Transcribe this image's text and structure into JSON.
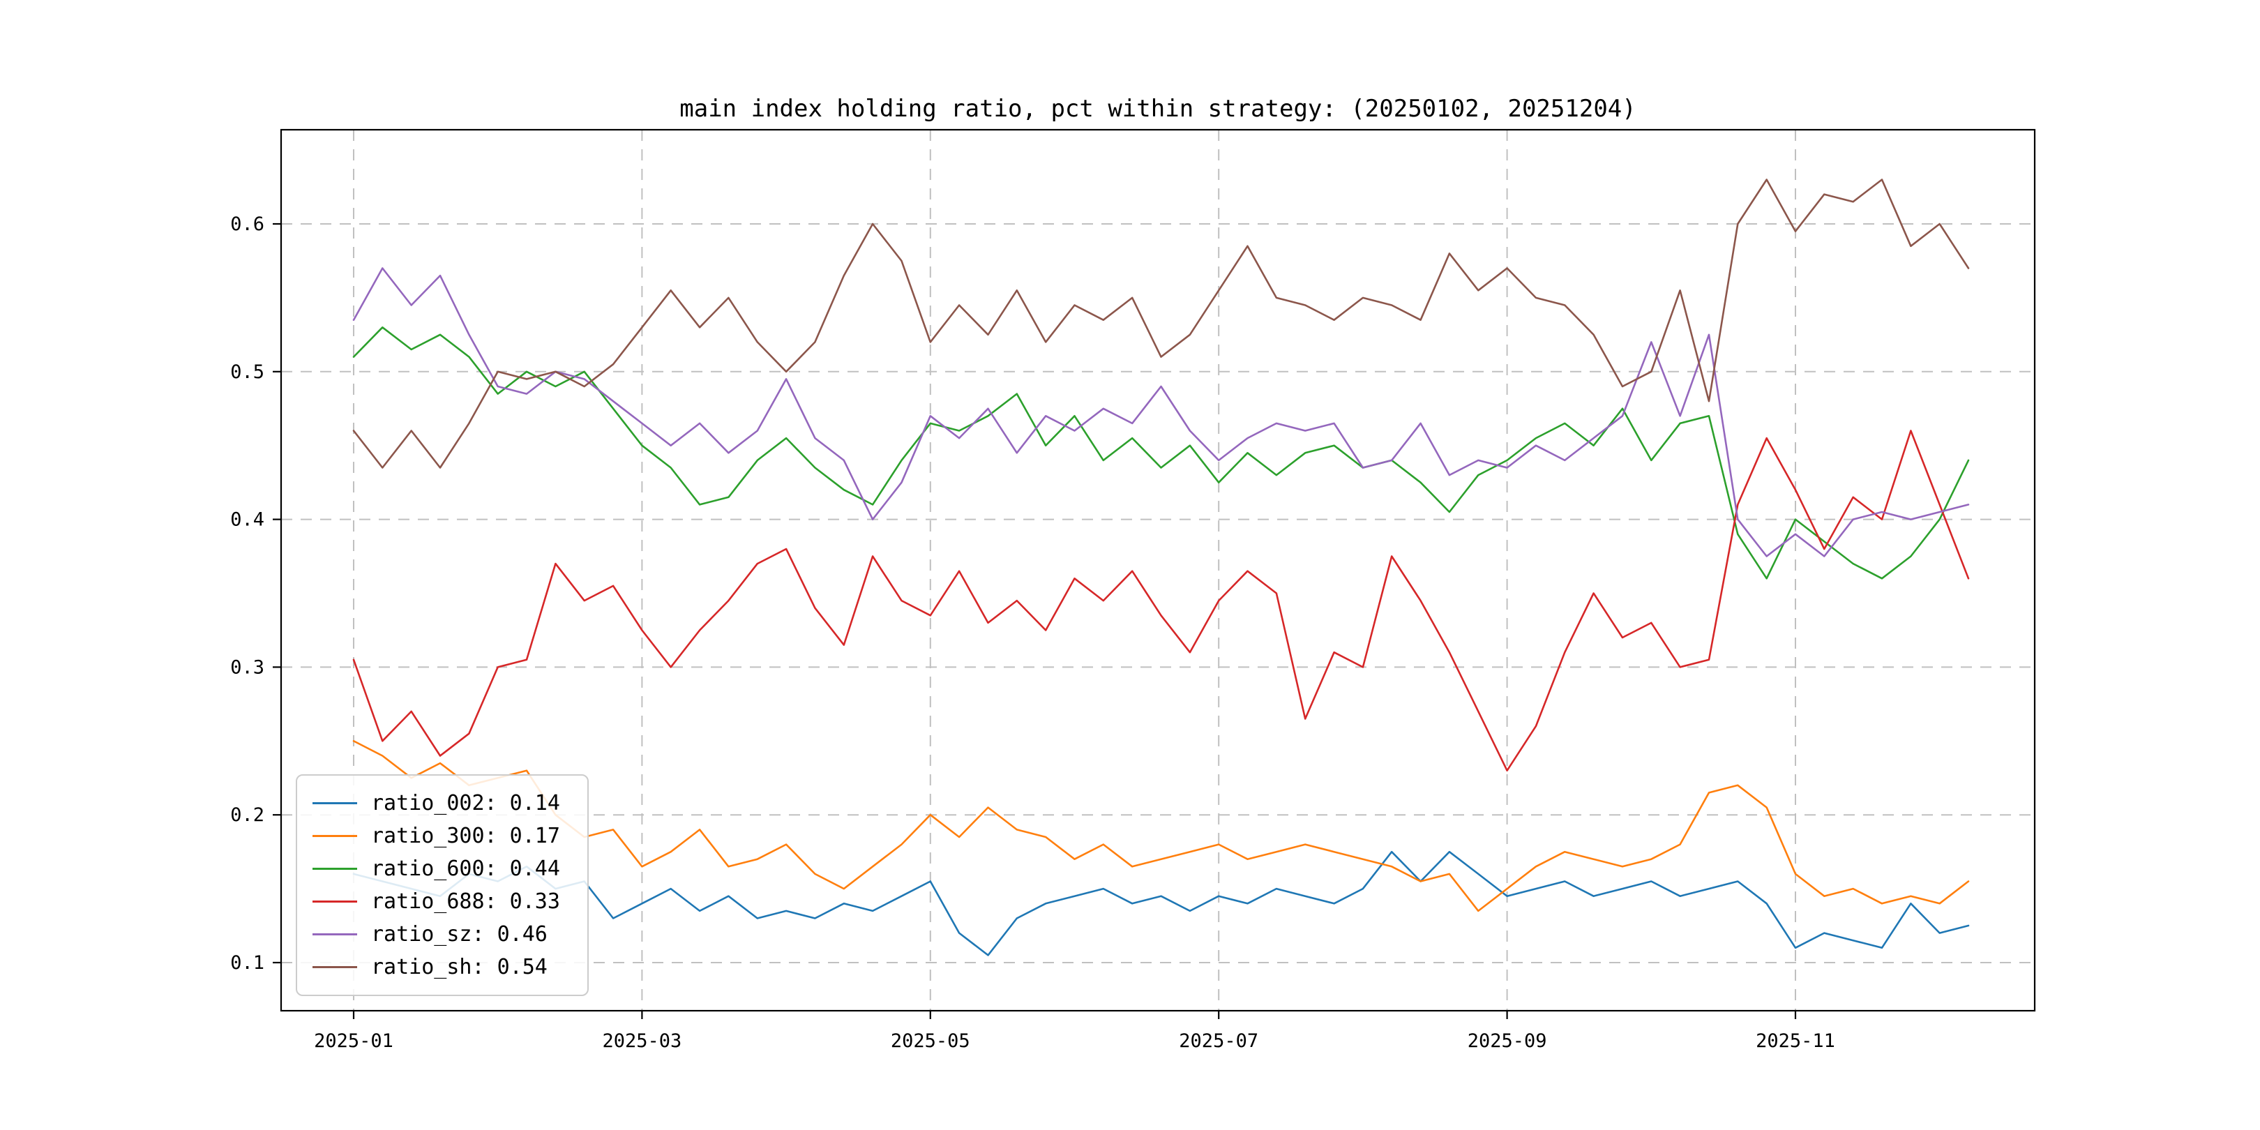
{
  "chart_data": {
    "type": "line",
    "title": "main index holding ratio, pct within strategy: (20250102, 20251204)",
    "date_range": [
      "20250102",
      "20251204"
    ],
    "grid": true,
    "grid_style": "dashed",
    "legend_position": "lower left",
    "xlim_months": [
      -0.5,
      11.66
    ],
    "ylim": [
      0.067,
      0.664
    ],
    "x_ticks": [
      {
        "pos": 0,
        "label": "2025-01"
      },
      {
        "pos": 2,
        "label": "2025-03"
      },
      {
        "pos": 4,
        "label": "2025-05"
      },
      {
        "pos": 6,
        "label": "2025-07"
      },
      {
        "pos": 8,
        "label": "2025-09"
      },
      {
        "pos": 10,
        "label": "2025-11"
      }
    ],
    "y_ticks": [
      0.1,
      0.2,
      0.3,
      0.4,
      0.5,
      0.6
    ],
    "y_tick_labels": [
      "0.1",
      "0.2",
      "0.3",
      "0.4",
      "0.5",
      "0.6"
    ],
    "x": [
      0,
      0.2,
      0.4,
      0.6,
      0.8,
      1,
      1.2,
      1.4,
      1.6,
      1.8,
      2,
      2.2,
      2.4,
      2.6,
      2.8,
      3,
      3.2,
      3.4,
      3.6,
      3.8,
      4,
      4.2,
      4.4,
      4.6,
      4.8,
      5,
      5.2,
      5.4,
      5.6,
      5.8,
      6,
      6.2,
      6.4,
      6.6,
      6.8,
      7,
      7.2,
      7.4,
      7.6,
      7.8,
      8,
      8.2,
      8.4,
      8.6,
      8.8,
      9,
      9.2,
      9.4,
      9.6,
      9.8,
      10,
      10.2,
      10.4,
      10.6,
      10.8,
      11,
      11.2
    ],
    "series": [
      {
        "name": "ratio_002",
        "legend_label": "ratio_002: 0.14",
        "mean": 0.14,
        "color": "#1f77b4",
        "values": [
          0.16,
          0.155,
          0.15,
          0.145,
          0.16,
          0.155,
          0.165,
          0.15,
          0.155,
          0.13,
          0.14,
          0.15,
          0.135,
          0.145,
          0.13,
          0.135,
          0.13,
          0.14,
          0.135,
          0.145,
          0.155,
          0.12,
          0.105,
          0.13,
          0.14,
          0.145,
          0.15,
          0.14,
          0.145,
          0.135,
          0.145,
          0.14,
          0.15,
          0.145,
          0.14,
          0.15,
          0.175,
          0.155,
          0.175,
          0.16,
          0.145,
          0.15,
          0.155,
          0.145,
          0.15,
          0.155,
          0.145,
          0.15,
          0.155,
          0.14,
          0.11,
          0.12,
          0.115,
          0.11,
          0.14,
          0.12,
          0.125
        ]
      },
      {
        "name": "ratio_300",
        "legend_label": "ratio_300: 0.17",
        "mean": 0.17,
        "color": "#ff7f0e",
        "values": [
          0.25,
          0.24,
          0.225,
          0.235,
          0.22,
          0.225,
          0.23,
          0.2,
          0.185,
          0.19,
          0.165,
          0.175,
          0.19,
          0.165,
          0.17,
          0.18,
          0.16,
          0.15,
          0.165,
          0.18,
          0.2,
          0.185,
          0.205,
          0.19,
          0.185,
          0.17,
          0.18,
          0.165,
          0.17,
          0.175,
          0.18,
          0.17,
          0.175,
          0.18,
          0.175,
          0.17,
          0.165,
          0.155,
          0.16,
          0.135,
          0.15,
          0.165,
          0.175,
          0.17,
          0.165,
          0.17,
          0.18,
          0.215,
          0.22,
          0.205,
          0.16,
          0.145,
          0.15,
          0.14,
          0.145,
          0.14,
          0.155
        ]
      },
      {
        "name": "ratio_600",
        "legend_label": "ratio_600: 0.44",
        "mean": 0.44,
        "color": "#2ca02c",
        "values": [
          0.51,
          0.53,
          0.515,
          0.525,
          0.51,
          0.485,
          0.5,
          0.49,
          0.5,
          0.475,
          0.45,
          0.435,
          0.41,
          0.415,
          0.44,
          0.455,
          0.435,
          0.42,
          0.41,
          0.44,
          0.465,
          0.46,
          0.47,
          0.485,
          0.45,
          0.47,
          0.44,
          0.455,
          0.435,
          0.45,
          0.425,
          0.445,
          0.43,
          0.445,
          0.45,
          0.435,
          0.44,
          0.425,
          0.405,
          0.43,
          0.44,
          0.455,
          0.465,
          0.45,
          0.475,
          0.44,
          0.465,
          0.47,
          0.39,
          0.36,
          0.4,
          0.385,
          0.37,
          0.36,
          0.375,
          0.4,
          0.44
        ]
      },
      {
        "name": "ratio_688",
        "legend_label": "ratio_688: 0.33",
        "mean": 0.33,
        "color": "#d62728",
        "values": [
          0.305,
          0.25,
          0.27,
          0.24,
          0.255,
          0.3,
          0.305,
          0.37,
          0.345,
          0.355,
          0.325,
          0.3,
          0.325,
          0.345,
          0.37,
          0.38,
          0.34,
          0.315,
          0.375,
          0.345,
          0.335,
          0.365,
          0.33,
          0.345,
          0.325,
          0.36,
          0.345,
          0.365,
          0.335,
          0.31,
          0.345,
          0.365,
          0.35,
          0.265,
          0.31,
          0.3,
          0.375,
          0.345,
          0.31,
          0.27,
          0.23,
          0.26,
          0.31,
          0.35,
          0.32,
          0.33,
          0.3,
          0.305,
          0.41,
          0.455,
          0.42,
          0.38,
          0.415,
          0.4,
          0.46,
          0.41,
          0.36
        ]
      },
      {
        "name": "ratio_sz",
        "legend_label": "ratio_sz: 0.46",
        "mean": 0.46,
        "color": "#9467bd",
        "values": [
          0.535,
          0.57,
          0.545,
          0.565,
          0.525,
          0.49,
          0.485,
          0.5,
          0.495,
          0.48,
          0.465,
          0.45,
          0.465,
          0.445,
          0.46,
          0.495,
          0.455,
          0.44,
          0.4,
          0.425,
          0.47,
          0.455,
          0.475,
          0.445,
          0.47,
          0.46,
          0.475,
          0.465,
          0.49,
          0.46,
          0.44,
          0.455,
          0.465,
          0.46,
          0.465,
          0.435,
          0.44,
          0.465,
          0.43,
          0.44,
          0.435,
          0.45,
          0.44,
          0.455,
          0.47,
          0.52,
          0.47,
          0.525,
          0.4,
          0.375,
          0.39,
          0.375,
          0.4,
          0.405,
          0.4,
          0.405,
          0.41
        ]
      },
      {
        "name": "ratio_sh",
        "legend_label": "ratio_sh: 0.54",
        "mean": 0.54,
        "color": "#8c564b",
        "values": [
          0.46,
          0.435,
          0.46,
          0.435,
          0.465,
          0.5,
          0.495,
          0.5,
          0.49,
          0.505,
          0.53,
          0.555,
          0.53,
          0.55,
          0.52,
          0.5,
          0.52,
          0.565,
          0.6,
          0.575,
          0.52,
          0.545,
          0.525,
          0.555,
          0.52,
          0.545,
          0.535,
          0.55,
          0.51,
          0.525,
          0.555,
          0.585,
          0.55,
          0.545,
          0.535,
          0.55,
          0.545,
          0.535,
          0.58,
          0.555,
          0.57,
          0.55,
          0.545,
          0.525,
          0.49,
          0.5,
          0.555,
          0.48,
          0.6,
          0.63,
          0.595,
          0.62,
          0.615,
          0.63,
          0.585,
          0.6,
          0.57
        ]
      }
    ]
  }
}
